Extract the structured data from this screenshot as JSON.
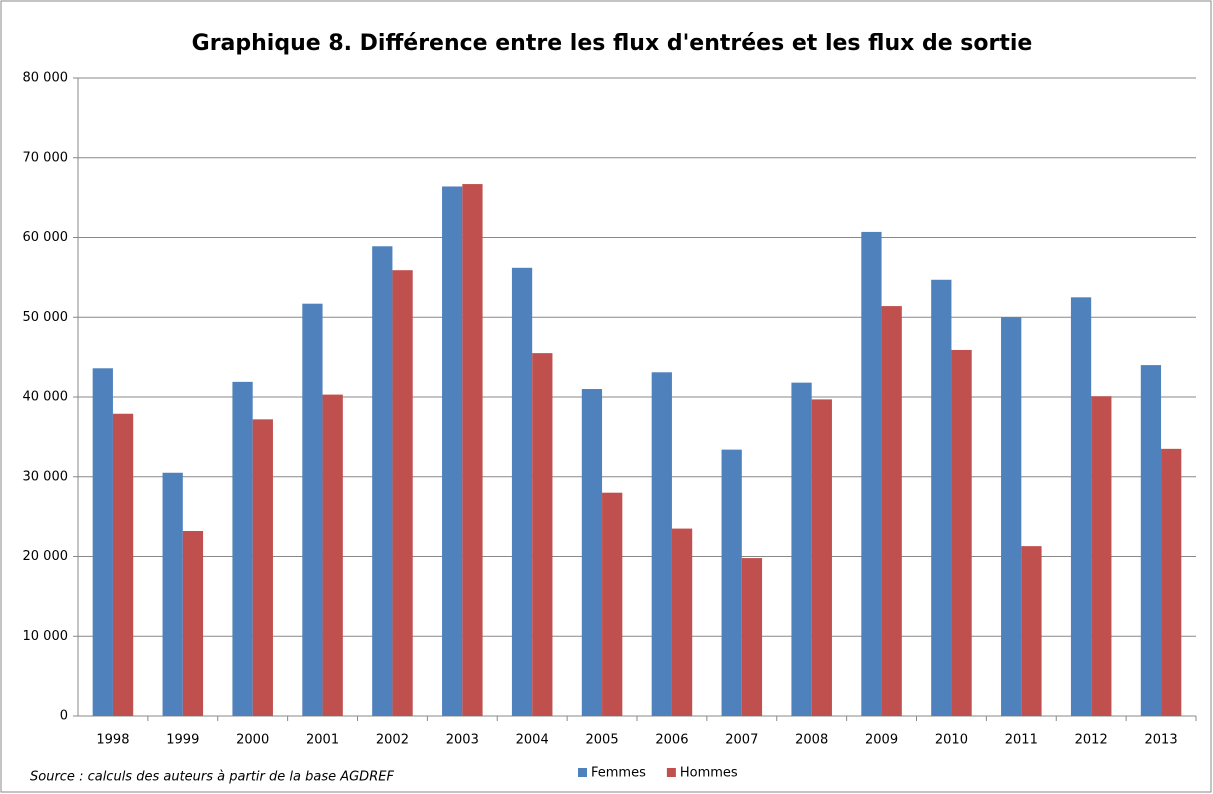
{
  "chart_data": {
    "type": "bar",
    "title": "Graphique 8. Différence entre les flux d'entrées et les flux de sortie",
    "source": "Source : calculs des auteurs à partir de  la base AGDREF",
    "categories": [
      "1998",
      "1999",
      "2000",
      "2001",
      "2002",
      "2003",
      "2004",
      "2005",
      "2006",
      "2007",
      "2008",
      "2009",
      "2010",
      "2011",
      "2012",
      "2013"
    ],
    "series": [
      {
        "name": "Femmes",
        "color": "#4f81bd",
        "values": [
          43600,
          30500,
          41900,
          51700,
          58900,
          66400,
          56200,
          41000,
          43100,
          33400,
          41800,
          60700,
          54700,
          50000,
          52500,
          44000
        ]
      },
      {
        "name": "Hommes",
        "color": "#c0504d",
        "values": [
          37900,
          23200,
          37200,
          40300,
          55900,
          66700,
          45500,
          28000,
          23500,
          19800,
          39700,
          51400,
          45900,
          21300,
          40100,
          33500
        ]
      }
    ],
    "ylim": [
      0,
      80000
    ],
    "yticks": [
      0,
      {
        "value": 10000,
        "label": "10 000"
      },
      {
        "value": 20000,
        "label": "20 000"
      },
      {
        "value": 30000,
        "label": "30 000"
      },
      {
        "value": 40000,
        "label": "40 000"
      },
      {
        "value": 50000,
        "label": "50 000"
      },
      {
        "value": 60000,
        "label": "60 000"
      },
      {
        "value": 70000,
        "label": "70 000"
      },
      {
        "value": 80000,
        "label": "80 000"
      }
    ],
    "grid": true
  }
}
